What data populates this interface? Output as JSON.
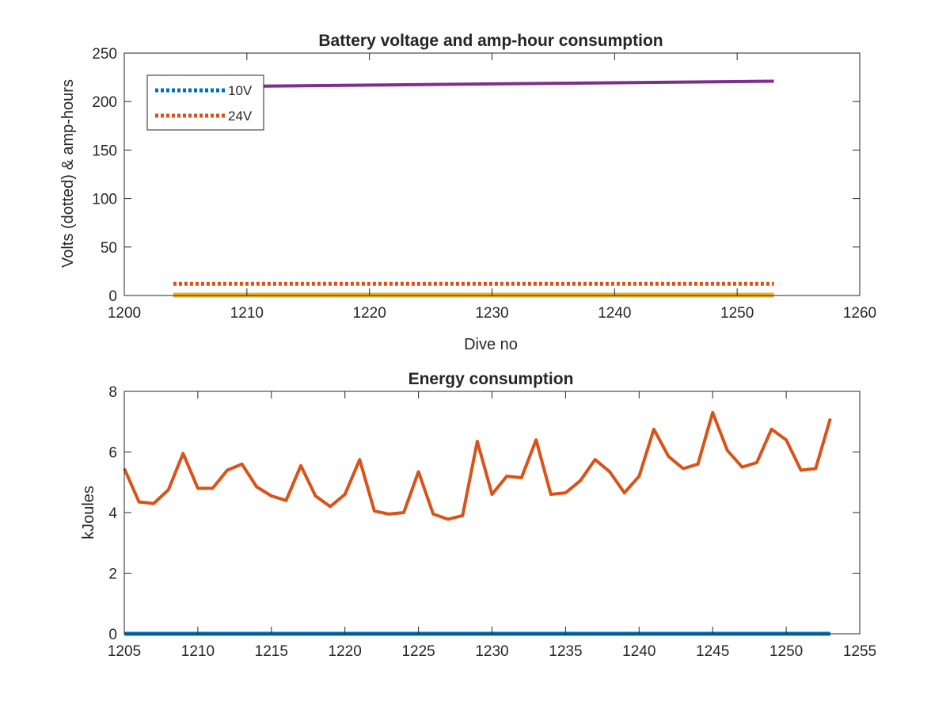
{
  "chart_data": [
    {
      "type": "line",
      "title": "Battery voltage and amp-hour consumption",
      "xlabel": "Dive no",
      "ylabel": "Volts (dotted) & amp-hours",
      "xlim": [
        1200,
        1260
      ],
      "ylim": [
        0,
        250
      ],
      "xticks": [
        1200,
        1210,
        1220,
        1230,
        1240,
        1250,
        1260
      ],
      "yticks": [
        0,
        50,
        100,
        150,
        200,
        250
      ],
      "grid": false,
      "legend_position": "top-left",
      "series": [
        {
          "name": "10V",
          "color": "#0072BD",
          "style": "dotted",
          "x": [
            1204,
            1253
          ],
          "y": [
            0.4,
            0.4
          ]
        },
        {
          "name": "24V",
          "color": "#D95319",
          "style": "dotted",
          "x": [
            1204,
            1253
          ],
          "y": [
            12,
            12
          ]
        },
        {
          "color": "#EDB120",
          "style": "solid",
          "x": [
            1204,
            1253
          ],
          "y": [
            0.4,
            0.4
          ]
        },
        {
          "color": "#7E2F8E",
          "style": "solid",
          "x": [
            1204,
            1253
          ],
          "y": [
            215,
            221
          ]
        }
      ]
    },
    {
      "type": "line",
      "title": "Energy consumption",
      "xlabel": "",
      "ylabel": "kJoules",
      "xlim": [
        1205,
        1255
      ],
      "ylim": [
        0,
        8
      ],
      "xticks": [
        1205,
        1210,
        1215,
        1220,
        1225,
        1230,
        1235,
        1240,
        1245,
        1250,
        1255
      ],
      "yticks": [
        0,
        2,
        4,
        6,
        8
      ],
      "grid": false,
      "series": [
        {
          "color": "#0072BD",
          "style": "solid",
          "x": [
            1205,
            1253
          ],
          "y": [
            0,
            0
          ]
        },
        {
          "color": "#D95319",
          "style": "solid",
          "x": [
            1205,
            1206,
            1207,
            1208,
            1209,
            1210,
            1211,
            1212,
            1213,
            1214,
            1215,
            1216,
            1217,
            1218,
            1219,
            1220,
            1221,
            1222,
            1223,
            1224,
            1225,
            1226,
            1227,
            1228,
            1229,
            1230,
            1231,
            1232,
            1233,
            1234,
            1235,
            1236,
            1237,
            1238,
            1239,
            1240,
            1241,
            1242,
            1243,
            1244,
            1245,
            1246,
            1247,
            1248,
            1249,
            1250,
            1251,
            1252,
            1253
          ],
          "y": [
            5.45,
            4.35,
            4.3,
            4.75,
            5.95,
            4.8,
            4.8,
            5.4,
            5.6,
            4.85,
            4.55,
            4.4,
            5.55,
            4.55,
            4.2,
            4.6,
            5.75,
            4.05,
            3.95,
            4.0,
            5.35,
            3.95,
            3.78,
            3.9,
            6.35,
            4.6,
            5.2,
            5.15,
            6.4,
            4.6,
            4.65,
            5.05,
            5.75,
            5.35,
            4.65,
            5.2,
            6.75,
            5.85,
            5.45,
            5.6,
            7.3,
            6.05,
            5.5,
            5.65,
            6.75,
            6.4,
            5.4,
            5.45,
            7.1
          ]
        }
      ]
    }
  ]
}
